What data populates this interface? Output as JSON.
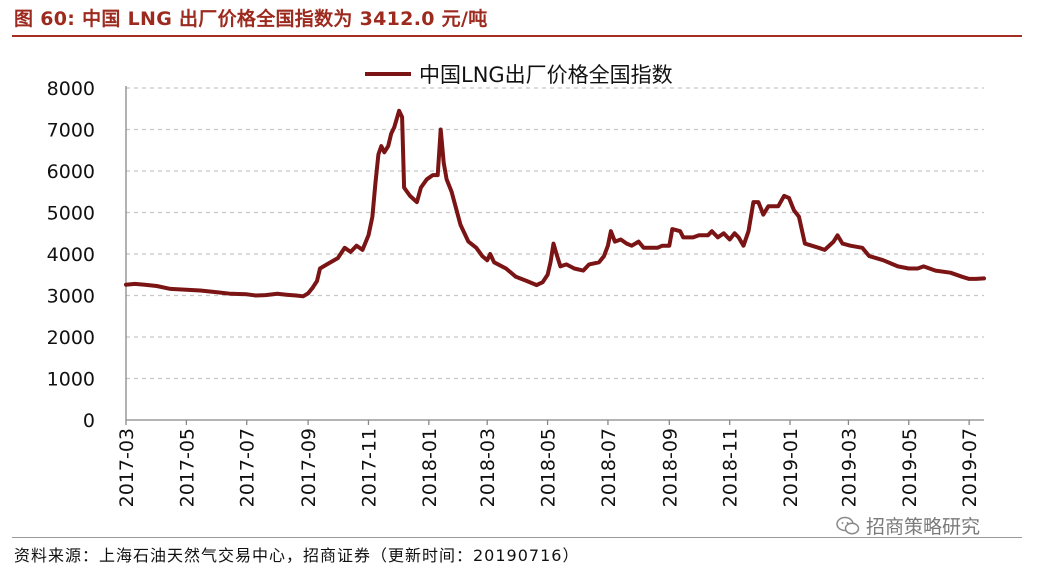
{
  "figure": {
    "title": "图 60:  中国 LNG 出厂价格全国指数为 3412.0 元/吨",
    "source": "资料来源：上海石油天然气交易中心，招商证券（更新时间：20190716）",
    "watermark": "招商策略研究",
    "watermark_icon": "wechat-icon",
    "accent_color": "#a62d24"
  },
  "chart_data": {
    "type": "line",
    "title": "",
    "xlabel": "",
    "ylabel": "",
    "ylim": [
      0,
      8000
    ],
    "yticks": [
      "0",
      "1000",
      "2000",
      "3000",
      "4000",
      "5000",
      "6000",
      "7000",
      "8000"
    ],
    "xlim": [
      "2017-03-01",
      "2019-07-16"
    ],
    "xticks": [
      "2017-03",
      "2017-05",
      "2017-07",
      "2017-09",
      "2017-11",
      "2018-01",
      "2018-03",
      "2018-05",
      "2018-07",
      "2018-09",
      "2018-11",
      "2019-01",
      "2019-03",
      "2019-05",
      "2019-07"
    ],
    "grid": "horizontal dashed",
    "legend": "top-center",
    "series": [
      {
        "name": "中国LNG出厂价格全国指数",
        "color": "#7b1414",
        "points": [
          [
            "2017-03-01",
            3260
          ],
          [
            "2017-03-10",
            3280
          ],
          [
            "2017-03-20",
            3260
          ],
          [
            "2017-04-01",
            3230
          ],
          [
            "2017-04-15",
            3160
          ],
          [
            "2017-05-01",
            3140
          ],
          [
            "2017-05-15",
            3120
          ],
          [
            "2017-06-01",
            3080
          ],
          [
            "2017-06-15",
            3040
          ],
          [
            "2017-07-01",
            3030
          ],
          [
            "2017-07-10",
            3000
          ],
          [
            "2017-07-20",
            3010
          ],
          [
            "2017-08-01",
            3040
          ],
          [
            "2017-08-10",
            3020
          ],
          [
            "2017-08-20",
            3000
          ],
          [
            "2017-08-27",
            2980
          ],
          [
            "2017-09-01",
            3050
          ],
          [
            "2017-09-06",
            3200
          ],
          [
            "2017-09-10",
            3350
          ],
          [
            "2017-09-13",
            3650
          ],
          [
            "2017-09-20",
            3750
          ],
          [
            "2017-10-01",
            3900
          ],
          [
            "2017-10-08",
            4150
          ],
          [
            "2017-10-14",
            4050
          ],
          [
            "2017-10-20",
            4200
          ],
          [
            "2017-10-26",
            4100
          ],
          [
            "2017-11-01",
            4450
          ],
          [
            "2017-11-05",
            4900
          ],
          [
            "2017-11-08",
            5700
          ],
          [
            "2017-11-11",
            6400
          ],
          [
            "2017-11-14",
            6600
          ],
          [
            "2017-11-17",
            6450
          ],
          [
            "2017-11-21",
            6600
          ],
          [
            "2017-11-24",
            6900
          ],
          [
            "2017-11-27",
            7050
          ],
          [
            "2017-12-02",
            7450
          ],
          [
            "2017-12-05",
            7300
          ],
          [
            "2017-12-07",
            5600
          ],
          [
            "2017-12-13",
            5400
          ],
          [
            "2017-12-20",
            5250
          ],
          [
            "2017-12-24",
            5600
          ],
          [
            "2017-12-30",
            5800
          ],
          [
            "2018-01-05",
            5900
          ],
          [
            "2018-01-10",
            5900
          ],
          [
            "2018-01-13",
            7000
          ],
          [
            "2018-01-16",
            6200
          ],
          [
            "2018-01-19",
            5800
          ],
          [
            "2018-01-24",
            5500
          ],
          [
            "2018-02-02",
            4700
          ],
          [
            "2018-02-10",
            4300
          ],
          [
            "2018-02-18",
            4150
          ],
          [
            "2018-02-24",
            3950
          ],
          [
            "2018-03-01",
            3850
          ],
          [
            "2018-03-04",
            4000
          ],
          [
            "2018-03-08",
            3800
          ],
          [
            "2018-03-20",
            3650
          ],
          [
            "2018-03-30",
            3450
          ],
          [
            "2018-04-10",
            3350
          ],
          [
            "2018-04-20",
            3250
          ],
          [
            "2018-04-26",
            3320
          ],
          [
            "2018-05-01",
            3500
          ],
          [
            "2018-05-04",
            3800
          ],
          [
            "2018-05-07",
            4250
          ],
          [
            "2018-05-10",
            4000
          ],
          [
            "2018-05-14",
            3700
          ],
          [
            "2018-05-20",
            3750
          ],
          [
            "2018-05-28",
            3650
          ],
          [
            "2018-06-06",
            3600
          ],
          [
            "2018-06-12",
            3750
          ],
          [
            "2018-06-22",
            3800
          ],
          [
            "2018-06-27",
            3950
          ],
          [
            "2018-07-01",
            4200
          ],
          [
            "2018-07-04",
            4550
          ],
          [
            "2018-07-08",
            4300
          ],
          [
            "2018-07-14",
            4350
          ],
          [
            "2018-07-20",
            4250
          ],
          [
            "2018-07-25",
            4200
          ],
          [
            "2018-08-01",
            4300
          ],
          [
            "2018-08-06",
            4150
          ],
          [
            "2018-08-20",
            4150
          ],
          [
            "2018-08-25",
            4200
          ],
          [
            "2018-09-01",
            4200
          ],
          [
            "2018-09-04",
            4600
          ],
          [
            "2018-09-12",
            4550
          ],
          [
            "2018-09-15",
            4400
          ],
          [
            "2018-09-25",
            4400
          ],
          [
            "2018-10-01",
            4450
          ],
          [
            "2018-10-10",
            4450
          ],
          [
            "2018-10-14",
            4550
          ],
          [
            "2018-10-20",
            4400
          ],
          [
            "2018-10-26",
            4500
          ],
          [
            "2018-11-01",
            4350
          ],
          [
            "2018-11-06",
            4500
          ],
          [
            "2018-11-10",
            4400
          ],
          [
            "2018-11-15",
            4200
          ],
          [
            "2018-11-20",
            4550
          ],
          [
            "2018-11-25",
            5250
          ],
          [
            "2018-11-30",
            5250
          ],
          [
            "2018-12-05",
            4950
          ],
          [
            "2018-12-10",
            5150
          ],
          [
            "2018-12-20",
            5150
          ],
          [
            "2018-12-26",
            5400
          ],
          [
            "2018-12-31",
            5350
          ],
          [
            "2019-01-05",
            5050
          ],
          [
            "2019-01-10",
            4900
          ],
          [
            "2019-01-16",
            4250
          ],
          [
            "2019-01-30",
            4150
          ],
          [
            "2019-02-05",
            4100
          ],
          [
            "2019-02-14",
            4300
          ],
          [
            "2019-02-18",
            4450
          ],
          [
            "2019-02-23",
            4250
          ],
          [
            "2019-03-03",
            4200
          ],
          [
            "2019-03-15",
            4150
          ],
          [
            "2019-03-22",
            3950
          ],
          [
            "2019-04-05",
            3850
          ],
          [
            "2019-04-20",
            3700
          ],
          [
            "2019-05-01",
            3650
          ],
          [
            "2019-05-10",
            3650
          ],
          [
            "2019-05-16",
            3700
          ],
          [
            "2019-05-28",
            3600
          ],
          [
            "2019-06-12",
            3550
          ],
          [
            "2019-06-24",
            3450
          ],
          [
            "2019-07-01",
            3400
          ],
          [
            "2019-07-08",
            3400
          ],
          [
            "2019-07-16",
            3412
          ]
        ]
      }
    ]
  }
}
